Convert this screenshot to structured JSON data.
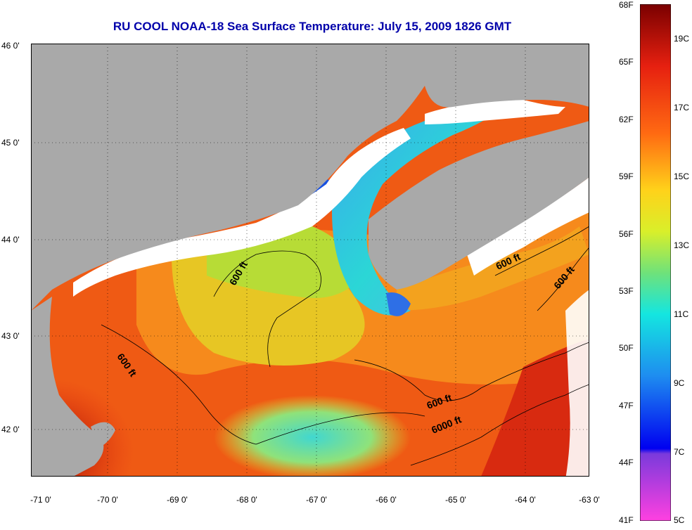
{
  "title": "RU COOL  NOAA-18  Sea Surface Temperature:  July 15, 2009 1826 GMT",
  "x_ticks": [
    "-71 0'",
    "-70 0'",
    "-69 0'",
    "-68 0'",
    "-67 0'",
    "-66 0'",
    "-65 0'",
    "-64 0'",
    "-63 0'"
  ],
  "y_ticks": [
    "46 0'",
    "45 0'",
    "44 0'",
    "43 0'",
    "42 0'"
  ],
  "contours": [
    "600 ft",
    "600 ft",
    "600 ft",
    "600 ft",
    "600 ft",
    "6000 ft"
  ],
  "colorbar": {
    "fahrenheit": [
      "68F",
      "65F",
      "62F",
      "59F",
      "56F",
      "53F",
      "50F",
      "47F",
      "44F",
      "41F"
    ],
    "celsius": [
      "19C",
      "17C",
      "15C",
      "13C",
      "11C",
      "9C",
      "7C",
      "5C"
    ]
  },
  "colors": {
    "land": "#a9a9a9",
    "cloud": "#ffffff",
    "title": "#0000aa"
  }
}
